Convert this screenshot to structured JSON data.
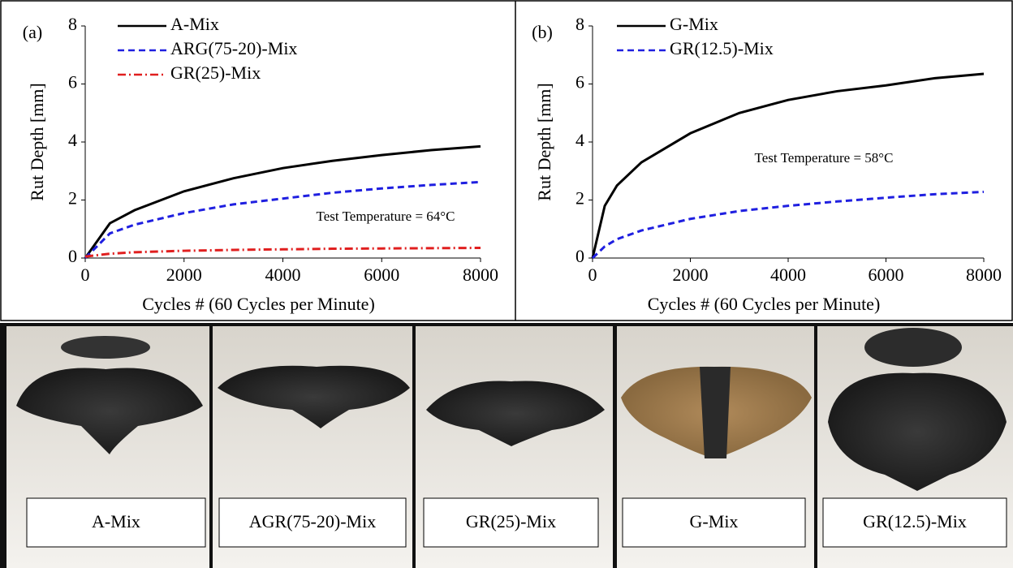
{
  "chart_data": [
    {
      "type": "line",
      "panel_label": "(a)",
      "x_label": "Cycles # (60 Cycles per Minute)",
      "y_label": "Rut Depth [mm]",
      "annotation": "Test Temperature = 64°C",
      "x": [
        0,
        500,
        1000,
        2000,
        3000,
        4000,
        5000,
        6000,
        7000,
        8000
      ],
      "series": [
        {
          "name": "A-Mix",
          "color": "#000000",
          "dash": "solid",
          "values": [
            0,
            1.2,
            1.65,
            2.3,
            2.75,
            3.1,
            3.35,
            3.55,
            3.72,
            3.85
          ]
        },
        {
          "name": "ARG(75-20)-Mix",
          "color": "#1f1fe0",
          "dash": "dashed",
          "values": [
            0,
            0.85,
            1.15,
            1.55,
            1.85,
            2.05,
            2.25,
            2.4,
            2.52,
            2.62
          ]
        },
        {
          "name": "GR(25)-Mix",
          "color": "#e01f1f",
          "dash": "dashdot",
          "values": [
            0.05,
            0.15,
            0.2,
            0.25,
            0.28,
            0.3,
            0.32,
            0.33,
            0.34,
            0.35
          ]
        }
      ],
      "xlim": [
        0,
        8000
      ],
      "xticks": [
        0,
        2000,
        4000,
        6000,
        8000
      ],
      "ylim": [
        0,
        8
      ],
      "yticks": [
        0,
        2,
        4,
        6,
        8
      ],
      "legend": "top-left"
    },
    {
      "type": "line",
      "panel_label": "(b)",
      "x_label": "Cycles # (60 Cycles per Minute)",
      "y_label": "Rut Depth [mm]",
      "annotation": "Test Temperature = 58°C",
      "x": [
        0,
        250,
        500,
        1000,
        2000,
        3000,
        4000,
        5000,
        6000,
        7000,
        8000
      ],
      "series": [
        {
          "name": "G-Mix",
          "color": "#000000",
          "dash": "solid",
          "values": [
            0,
            1.8,
            2.5,
            3.3,
            4.3,
            5.0,
            5.45,
            5.75,
            5.95,
            6.2,
            6.35
          ]
        },
        {
          "name": "GR(12.5)-Mix",
          "color": "#1f1fe0",
          "dash": "dashed",
          "values": [
            0,
            0.4,
            0.65,
            0.95,
            1.35,
            1.62,
            1.8,
            1.95,
            2.08,
            2.2,
            2.28
          ]
        }
      ],
      "xlim": [
        0,
        8000
      ],
      "xticks": [
        0,
        2000,
        4000,
        6000,
        8000
      ],
      "ylim": [
        0,
        8
      ],
      "yticks": [
        0,
        2,
        4,
        6,
        8
      ],
      "legend": "top-left"
    }
  ],
  "photos": {
    "labels": [
      "A-Mix",
      "AGR(75-20)-Mix",
      "GR(25)-Mix",
      "G-Mix",
      "GR(12.5)-Mix"
    ]
  }
}
